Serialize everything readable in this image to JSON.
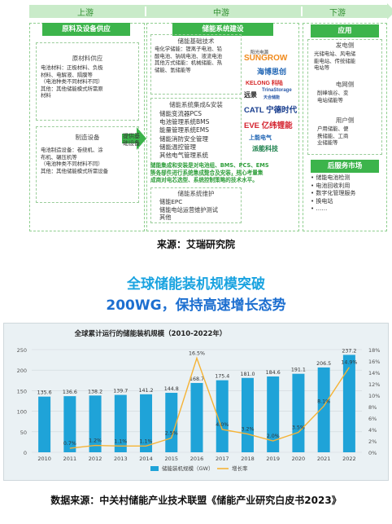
{
  "diagram": {
    "stages": [
      "上游",
      "中游",
      "下游"
    ],
    "upstream": {
      "title": "原料及设备供应",
      "raw_title": "原材料供应",
      "raw_lines": [
        "电池材料：正极材料、负极",
        "材料、电解液、隔膜等",
        "（电池种类不同材料不同）",
        "其他：其他储能模式所需原",
        "材料"
      ],
      "equip_title": "制造设备",
      "equip_lines": [
        "电池制造设备：卷绕机、涂",
        "布机、碾压机等",
        "（电池种类不同材料不同）",
        "其他：其他储能模式所需设备"
      ]
    },
    "midstream": {
      "title": "储能系统建设",
      "tech_title": "储能基础技术",
      "tech_lines": [
        "电化学储能：锂离子电池、铅",
        "酸电池、钠硫电池、液流电池",
        "其他方式储能：机械储能、热",
        "储能、氢储能等"
      ],
      "integ_title": "储能系统集成&安装",
      "integ_items": [
        "储能变流器PCS",
        "电池管理系统BMS",
        "能量管理系统EMS",
        "储能消防安全管理",
        "储能温控管理",
        "其他电气管理系统"
      ],
      "note": [
        "储能集成和安装是对电池组、BMS、PCS、EMS",
        "等各部件进行系统集成整合及安装，核心考量集",
        "成商对电芯选型、系统控制策略的技术水平。"
      ],
      "maint_title": "储能系统维护",
      "maint_items": [
        "储能EPC",
        "储能电站运营维护测试",
        "其他"
      ],
      "arrow_text": [
        "提供基",
        "础设备"
      ],
      "logos": [
        "阳光电源",
        "SUNGROW",
        "海博思创",
        "KELONG 科陆",
        "远景",
        "TrinaStorage",
        "天合储能",
        "CATL 宁德时代",
        "EVE 亿纬锂能",
        "上能电气",
        "派能科技"
      ]
    },
    "downstream": {
      "app_title": "应用",
      "gen_title": "发电侧",
      "gen_lines": [
        "光储电站、风电储",
        "能电站、传统储能",
        "电站等"
      ],
      "grid_title": "电网侧",
      "grid_lines": [
        "削峰填谷、变",
        "电站储能等"
      ],
      "user_title": "用户侧",
      "user_lines": [
        "户用储能、便",
        "携储能、工商",
        "业储能等"
      ],
      "service_title": "后服务市场",
      "service_items": [
        "储能电池检测",
        "电池回收利用",
        "数字化管理服务",
        "换电站",
        "……"
      ]
    },
    "source": "来源：艾瑞研究院"
  },
  "headline": {
    "line1": "全球储能装机规模突破",
    "line2": "200WG，保持高速增长态势",
    "color": "#1aa3e0",
    "color2": "#1d6fd0"
  },
  "chart_data": {
    "type": "bar",
    "title": "全球累计运行的储能装机规模（2010-2022年）",
    "categories": [
      "2010",
      "2011",
      "2012",
      "2013",
      "2014",
      "2015",
      "2016",
      "2017",
      "2018",
      "2019",
      "2020",
      "2021",
      "2022"
    ],
    "series": [
      {
        "name": "储能装机规模（GW）",
        "type": "bar",
        "values": [
          135.6,
          136.6,
          138.2,
          139.7,
          141.2,
          144.8,
          168.7,
          175.4,
          181.0,
          184.6,
          191.1,
          206.5,
          237.2
        ],
        "color": "#1fa3d8"
      },
      {
        "name": "增长率",
        "type": "line",
        "values": [
          null,
          0.7,
          1.2,
          1.1,
          1.1,
          2.5,
          16.5,
          4.0,
          3.2,
          2.0,
          3.5,
          8.1,
          14.9
        ],
        "labels": [
          null,
          "0.7%",
          "1.2%",
          "1.1%",
          "1.1%",
          "2.5%",
          "16.5%",
          "4.0%",
          "3.2%",
          "2.0%",
          "3.5%",
          "8.1%",
          "14.9%"
        ],
        "color": "#f5b336"
      }
    ],
    "ylim_left": [
      0,
      250
    ],
    "yticks_left": [
      0,
      50,
      100,
      150,
      200,
      250
    ],
    "ylim_right": [
      0,
      18
    ],
    "yticks_right": [
      "0%",
      "2%",
      "4%",
      "6%",
      "8%",
      "10%",
      "12%",
      "14%",
      "16%",
      "18%"
    ],
    "legend_position": "bottom"
  },
  "source2": "数据来源：中关村储能产业技术联盟《储能产业研究白皮书2023》"
}
